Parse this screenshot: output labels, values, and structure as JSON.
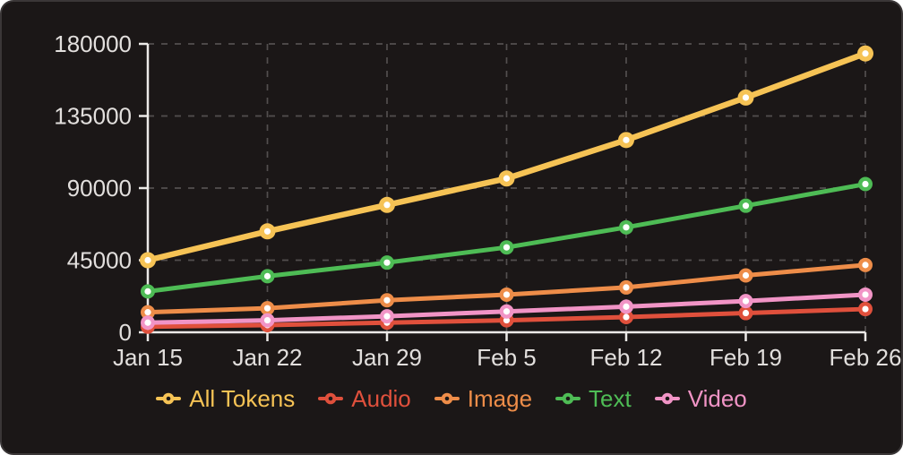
{
  "chart_data": {
    "type": "line",
    "categories": [
      "Jan 15",
      "Jan 22",
      "Jan 29",
      "Feb 5",
      "Feb 12",
      "Feb 19",
      "Feb 26"
    ],
    "series": [
      {
        "name": "All Tokens",
        "color": "#f6c355",
        "values": [
          45000,
          63000,
          79500,
          96000,
          120000,
          146500,
          174000
        ]
      },
      {
        "name": "Audio",
        "color": "#e0503c",
        "values": [
          3500,
          4500,
          6000,
          7500,
          9500,
          12000,
          14500
        ]
      },
      {
        "name": "Image",
        "color": "#ee8d49",
        "values": [
          12500,
          15000,
          20000,
          23500,
          28000,
          35500,
          42000
        ]
      },
      {
        "name": "Text",
        "color": "#4ebc55",
        "values": [
          25500,
          35000,
          43500,
          53000,
          65500,
          79000,
          92500
        ]
      },
      {
        "name": "Video",
        "color": "#f194c6",
        "values": [
          6000,
          7500,
          10000,
          13000,
          16000,
          19500,
          23500
        ]
      }
    ],
    "yticks": [
      0,
      45000,
      90000,
      135000,
      180000
    ],
    "ylim": [
      0,
      180000
    ],
    "grid": "dashed",
    "legend_position": "bottom",
    "marker": "circle-with-white-center"
  },
  "style": {
    "background": "#1b1717",
    "card_border": "#3a3637",
    "axis_color": "#eceae8",
    "label_color": "#e2dfdd",
    "grid_color": "#534f4f"
  }
}
